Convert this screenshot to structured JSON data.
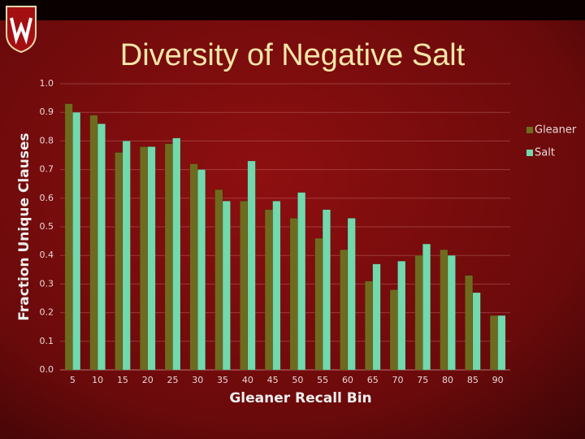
{
  "chart_data": {
    "type": "bar",
    "title": "Diversity of Negative Salt",
    "x_label": "Gleaner Recall Bin",
    "y_label": "Fraction Unique Clauses",
    "categories": [
      "5",
      "10",
      "15",
      "20",
      "25",
      "30",
      "35",
      "40",
      "45",
      "50",
      "55",
      "60",
      "65",
      "70",
      "75",
      "80",
      "85",
      "90"
    ],
    "series": [
      {
        "name": "Gleaner",
        "color": "#6f6b1e",
        "values": [
          0.93,
          0.89,
          0.76,
          0.78,
          0.79,
          0.72,
          0.63,
          0.59,
          0.56,
          0.53,
          0.46,
          0.42,
          0.31,
          0.28,
          0.4,
          0.42,
          0.33,
          0.19
        ]
      },
      {
        "name": "Salt",
        "color": "#72d9ad",
        "values": [
          0.9,
          0.86,
          0.8,
          0.78,
          0.81,
          0.7,
          0.59,
          0.73,
          0.59,
          0.62,
          0.56,
          0.53,
          0.37,
          0.38,
          0.44,
          0.4,
          0.27,
          0.19
        ]
      }
    ],
    "ylim": [
      0,
      1
    ],
    "yticks": [
      {
        "value": 0,
        "label": "0.0"
      },
      0.1,
      0.2,
      0.3,
      0.4,
      0.5,
      0.6,
      0.7,
      0.8,
      0.9,
      {
        "value": 1,
        "label": "1.0"
      }
    ],
    "grid": true,
    "legend": "right"
  }
}
